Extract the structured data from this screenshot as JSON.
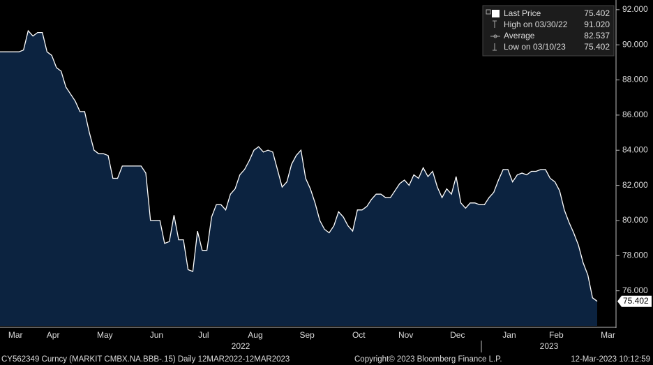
{
  "chart_data": {
    "type": "area",
    "color": "#0c2340",
    "line_color": "#ffffff",
    "categories": [
      null,
      null,
      null,
      "Mar",
      null,
      null,
      null,
      null,
      null,
      null,
      null,
      "Apr",
      null,
      null,
      null,
      null,
      null,
      null,
      null,
      null,
      null,
      null,
      "May",
      null,
      null,
      null,
      null,
      null,
      null,
      null,
      null,
      null,
      null,
      "Jun",
      null,
      null,
      null,
      null,
      null,
      null,
      null,
      null,
      null,
      "Jul",
      null,
      null,
      null,
      null,
      null,
      null,
      null,
      null,
      null,
      null,
      "Aug",
      null,
      null,
      null,
      null,
      null,
      null,
      null,
      null,
      null,
      null,
      "Sep",
      null,
      null,
      null,
      null,
      null,
      null,
      null,
      null,
      null,
      null,
      "Oct",
      null,
      null,
      null,
      null,
      null,
      null,
      null,
      null,
      null,
      "Nov",
      null,
      null,
      null,
      null,
      null,
      null,
      null,
      null,
      null,
      null,
      "Dec",
      null,
      null,
      null,
      null,
      null,
      null,
      null,
      null,
      null,
      null,
      "Jan",
      null,
      null,
      null,
      null,
      null,
      null,
      null,
      null,
      null,
      "Feb",
      null,
      null,
      null,
      null,
      null,
      null,
      null,
      null,
      null,
      null,
      "Mar",
      null
    ],
    "values": [
      89.6,
      89.6,
      89.6,
      89.6,
      89.6,
      89.7,
      90.8,
      90.5,
      90.7,
      90.7,
      89.6,
      89.4,
      88.7,
      88.5,
      87.6,
      87.2,
      86.8,
      86.2,
      86.2,
      85.0,
      84.0,
      83.8,
      83.8,
      83.7,
      82.4,
      82.4,
      83.1,
      83.1,
      83.1,
      83.1,
      83.1,
      82.7,
      80.0,
      80.0,
      80.0,
      78.7,
      78.8,
      80.3,
      78.9,
      78.9,
      77.2,
      77.1,
      79.4,
      78.3,
      78.3,
      80.2,
      80.9,
      80.9,
      80.6,
      81.5,
      81.8,
      82.6,
      82.9,
      83.4,
      84.0,
      84.2,
      83.9,
      84.0,
      83.9,
      82.9,
      81.9,
      82.2,
      83.2,
      83.7,
      84.0,
      82.4,
      81.8,
      81.0,
      80.0,
      79.5,
      79.3,
      79.7,
      80.5,
      80.2,
      79.7,
      79.4,
      80.6,
      80.6,
      80.8,
      81.2,
      81.5,
      81.5,
      81.3,
      81.3,
      81.7,
      82.1,
      82.3,
      82.0,
      82.6,
      82.4,
      83.0,
      82.5,
      82.8,
      81.9,
      81.3,
      81.8,
      81.5,
      82.5,
      81.0,
      80.7,
      81.0,
      81.0,
      80.9,
      80.9,
      81.3,
      81.6,
      82.3,
      82.9,
      82.9,
      82.2,
      82.6,
      82.7,
      82.6,
      82.8,
      82.8,
      82.9,
      82.9,
      82.4,
      82.2,
      81.7,
      80.6,
      79.9,
      79.3,
      78.6,
      77.6,
      76.9,
      75.6,
      75.402,
      null,
      null,
      null
    ],
    "year_labels": [
      "2022",
      "2023"
    ],
    "ylim": [
      74,
      92.55
    ],
    "yticks": [
      {
        "value": 76,
        "label": "76.000"
      },
      {
        "value": 78,
        "label": "78.000"
      },
      {
        "value": 80,
        "label": "80.000"
      },
      {
        "value": 82,
        "label": "82.000"
      },
      {
        "value": 84,
        "label": "84.000"
      },
      {
        "value": 86,
        "label": "86.000"
      },
      {
        "value": 88,
        "label": "88.000"
      },
      {
        "value": 90,
        "label": "90.000"
      },
      {
        "value": 92,
        "label": "92.000"
      }
    ],
    "legend": [
      {
        "label": "Last Price",
        "value": 75.402,
        "value_label": "75.402"
      },
      {
        "label": "High on 03/30/22",
        "value": 91.02,
        "value_label": "91.020"
      },
      {
        "label": "Average",
        "value": 82.537,
        "value_label": "82.537"
      },
      {
        "label": "Low on 03/10/23",
        "value": 75.402,
        "value_label": "75.402"
      }
    ],
    "footer": {
      "security": "CY562349 Curncy (MARKIT CMBX.NA.BBB-.15)  Daily 12MAR2022-12MAR2023",
      "copyright": "Copyright© 2023 Bloomberg Finance L.P.",
      "timestamp": "12-Mar-2023 10:12:59"
    }
  }
}
